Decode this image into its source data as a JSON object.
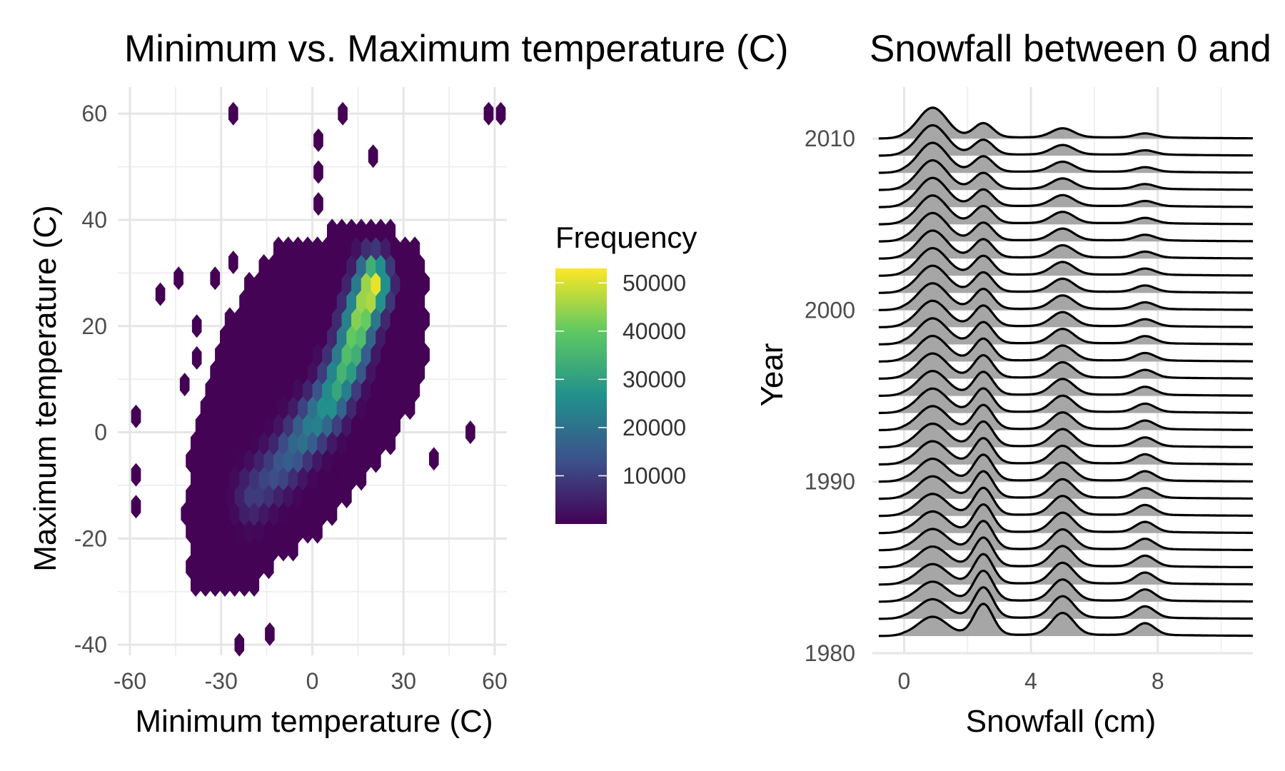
{
  "chart_data": [
    {
      "type": "heatmap",
      "subtype": "hexbin",
      "title": "Minimum vs. Maximum temperature (C)",
      "xlabel": "Minimum temperature (C)",
      "ylabel": "Maximum temperature (C)",
      "xlim": [
        -64,
        64
      ],
      "ylim": [
        -42,
        65
      ],
      "xticks": [
        -60,
        -30,
        0,
        30,
        60
      ],
      "yticks": [
        -40,
        -20,
        0,
        20,
        40,
        60
      ],
      "xtick_labels": [
        "-60",
        "-30",
        "0",
        "30",
        "60"
      ],
      "ytick_labels": [
        "-40",
        "-20",
        "0",
        "20",
        "40",
        "60"
      ],
      "grid": true,
      "colormap": "viridis",
      "legend": {
        "title": "Frequency",
        "placement": "right",
        "range": [
          0,
          53000
        ],
        "ticks": [
          10000,
          20000,
          30000,
          40000,
          50000
        ],
        "tick_labels": [
          "10000",
          "20000",
          "30000",
          "40000",
          "50000"
        ],
        "colors": [
          "#440154",
          "#3b528b",
          "#21908c",
          "#5dc863",
          "#fde725"
        ]
      },
      "main_cluster": {
        "polygon": [
          [
            -40,
            -29
          ],
          [
            -26,
            -31
          ],
          [
            -16,
            -28
          ],
          [
            -10,
            -24
          ],
          [
            0,
            -20
          ],
          [
            10,
            -14
          ],
          [
            20,
            -8
          ],
          [
            28,
            -1
          ],
          [
            34,
            6
          ],
          [
            38,
            14
          ],
          [
            38,
            28
          ],
          [
            34,
            36
          ],
          [
            22,
            40
          ],
          [
            10,
            39
          ],
          [
            -2,
            37
          ],
          [
            -14,
            34
          ],
          [
            -22,
            28
          ],
          [
            -30,
            18
          ],
          [
            -36,
            10
          ],
          [
            -40,
            -2
          ],
          [
            -42,
            -16
          ]
        ],
        "ridge_points": [
          [
            -20,
            -12
          ],
          [
            -10,
            -6
          ],
          [
            -2,
            0
          ],
          [
            6,
            6
          ],
          [
            12,
            14
          ],
          [
            16,
            22
          ],
          [
            20,
            28
          ]
        ],
        "ridge_width": 3.5,
        "peak_frequency": 53000,
        "background_frequency": 300
      },
      "outliers": [
        [
          -26,
          60
        ],
        [
          10,
          60
        ],
        [
          58,
          60
        ],
        [
          62,
          60
        ],
        [
          2,
          55
        ],
        [
          20,
          52
        ],
        [
          2,
          49
        ],
        [
          2,
          43
        ],
        [
          -50,
          26
        ],
        [
          -44,
          29
        ],
        [
          -32,
          29
        ],
        [
          -26,
          32
        ],
        [
          -38,
          20
        ],
        [
          -38,
          14
        ],
        [
          -42,
          9
        ],
        [
          -58,
          3
        ],
        [
          52,
          0
        ],
        [
          -58,
          -8
        ],
        [
          -58,
          -14
        ],
        [
          40,
          -5
        ],
        [
          -14,
          -38
        ],
        [
          -24,
          -40
        ]
      ]
    },
    {
      "type": "area",
      "subtype": "ridgeline",
      "title": "Snowfall between 0 and",
      "xlabel": "Snowfall (cm)",
      "ylabel": "Year",
      "xlim": [
        -1,
        11
      ],
      "ylim": [
        1980,
        2013
      ],
      "xticks": [
        0,
        4,
        8
      ],
      "yticks": [
        1980,
        1990,
        2000,
        2010
      ],
      "xtick_labels": [
        "0",
        "4",
        "8"
      ],
      "ytick_labels": [
        "1980",
        "1990",
        "2000",
        "2010"
      ],
      "grid": true,
      "fill_color": "#a6a6a6",
      "line_color": "#000000",
      "years": [
        1981,
        1982,
        1983,
        1984,
        1985,
        1986,
        1987,
        1988,
        1989,
        1990,
        1991,
        1992,
        1993,
        1994,
        1995,
        1996,
        1997,
        1998,
        1999,
        2000,
        2001,
        2002,
        2003,
        2004,
        2005,
        2006,
        2007,
        2008,
        2009,
        2010
      ],
      "x_range": [
        -0.8,
        11
      ],
      "density_peaks": [
        {
          "center": 0.9,
          "width": 0.45,
          "height_top": 1.15,
          "height_bottom": 0.7
        },
        {
          "center": 2.5,
          "width": 0.3,
          "height_top": 0.55,
          "height_bottom": 1.2
        },
        {
          "center": 5.0,
          "width": 0.35,
          "height_top": 0.35,
          "height_bottom": 0.85
        },
        {
          "center": 7.6,
          "width": 0.3,
          "height_top": 0.15,
          "height_bottom": 0.45
        }
      ],
      "ridge_scale_years": 1.5
    }
  ]
}
